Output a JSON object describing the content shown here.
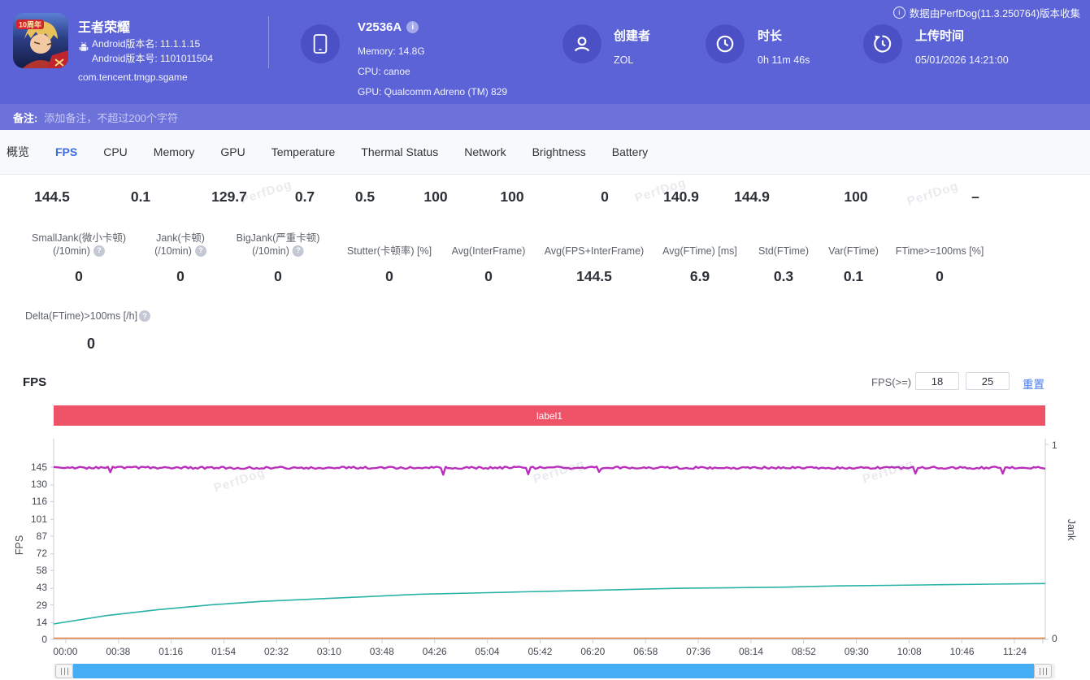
{
  "watermark": "PerfDog",
  "top_note": "数据由PerfDog(11.3.250764)版本收集",
  "header": {
    "app": {
      "name": "王者荣耀",
      "icon_badge": "10周年",
      "android_version_name": "Android版本名: 11.1.1.15",
      "android_version_code": "Android版本号: 1101011504",
      "package": "com.tencent.tmgp.sgame"
    },
    "device": {
      "model": "V2536A",
      "memory": "Memory: 14.8G",
      "cpu": "CPU: canoe",
      "gpu": "GPU: Qualcomm Adreno (TM) 829"
    },
    "creator": {
      "label": "创建者",
      "value": "ZOL"
    },
    "duration": {
      "label": "时长",
      "value": "0h 11m 46s"
    },
    "upload": {
      "label": "上传时间",
      "value": "05/01/2026 14:21:00"
    }
  },
  "notes": {
    "label": "备注:",
    "placeholder": "添加备注，不超过200个字符"
  },
  "tabs": [
    "概览",
    "FPS",
    "CPU",
    "Memory",
    "GPU",
    "Temperature",
    "Thermal Status",
    "Network",
    "Brightness",
    "Battery"
  ],
  "active_tab": "FPS",
  "stats": {
    "row1_values": [
      "144.5",
      "0.1",
      "129.7",
      "0.7",
      "0.5",
      "100",
      "100",
      "0",
      "140.9",
      "144.9",
      "100",
      "–"
    ],
    "row2": [
      {
        "line1": "SmallJank(微小卡顿)",
        "line2": "(/10min)",
        "help": true,
        "value": "0"
      },
      {
        "line1": "Jank(卡顿)",
        "line2": "(/10min)",
        "help": true,
        "value": "0"
      },
      {
        "line1": "BigJank(严重卡顿)",
        "line2": "(/10min)",
        "help": true,
        "value": "0"
      },
      {
        "line1": "Stutter(卡顿率) [%]",
        "value": "0"
      },
      {
        "line1": "Avg(InterFrame)",
        "value": "0"
      },
      {
        "line1": "Avg(FPS+InterFrame)",
        "value": "144.5"
      },
      {
        "line1": "Avg(FTime) [ms]",
        "value": "6.9"
      },
      {
        "line1": "Std(FTime)",
        "value": "0.3"
      },
      {
        "line1": "Var(FTime)",
        "value": "0.1"
      },
      {
        "line1": "FTime>=100ms [%]",
        "value": "0"
      }
    ],
    "delta": {
      "label": "Delta(FTime)>100ms [/h]",
      "help": true,
      "value": "0"
    }
  },
  "fps_section": {
    "title": "FPS",
    "filter_label": "FPS(>=)",
    "filter_min": "18",
    "filter_max": "25",
    "reset_label": "重置",
    "banner_label": "label1"
  },
  "chart_data": {
    "type": "line",
    "title": "FPS",
    "grid": false,
    "legend_position": "none",
    "y_left": {
      "label": "FPS",
      "min": 0,
      "max": 145,
      "ticks": [
        0,
        14,
        29,
        43,
        58,
        72,
        87,
        101,
        116,
        130,
        145
      ]
    },
    "y_right": {
      "label": "Jank",
      "min": 0,
      "max": 1,
      "ticks": [
        0,
        1
      ]
    },
    "x_ticks": [
      "00:00",
      "00:38",
      "01:16",
      "01:54",
      "02:32",
      "03:10",
      "03:48",
      "04:26",
      "05:04",
      "05:42",
      "06:20",
      "06:58",
      "07:36",
      "08:14",
      "08:52",
      "09:30",
      "10:08",
      "10:46",
      "11:24"
    ],
    "series": [
      {
        "name": "FPS",
        "color": "#b92fbc",
        "style": "noisy-flat",
        "base": 144.5,
        "note": "constant ~144.5 fps across full session with tiny jitter and occasional brief dips to ~139"
      },
      {
        "name": "cumulative-average-curve",
        "color": "#27b2a6",
        "style": "smooth",
        "values": [
          13,
          20,
          25,
          29,
          32,
          34,
          36,
          38,
          39,
          40,
          41,
          42,
          43,
          43.5,
          44,
          45,
          45.5,
          46,
          46.5,
          47
        ]
      },
      {
        "name": "baseline-low",
        "color": "#e07f38",
        "style": "flat",
        "values": [
          1,
          1,
          1,
          1,
          1,
          1,
          1,
          1,
          1,
          1,
          1,
          1,
          1,
          1,
          1,
          1,
          1,
          1,
          1,
          1
        ]
      }
    ]
  }
}
